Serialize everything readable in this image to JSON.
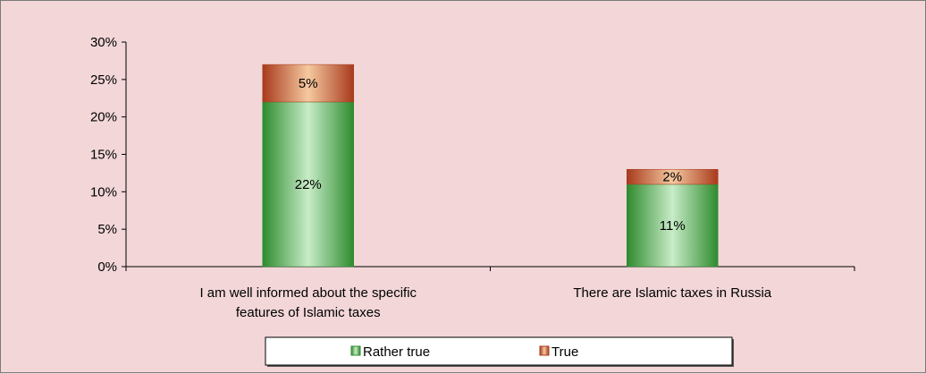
{
  "chart_data": {
    "type": "bar",
    "stacked": true,
    "categories": [
      [
        "I am well informed about the specific",
        "features of Islamic taxes"
      ],
      [
        "There are Islamic taxes in Russia"
      ]
    ],
    "series": [
      {
        "name": "Rather true",
        "values": [
          22,
          11
        ],
        "labels": [
          "22%",
          "11%"
        ],
        "color_edge": "#2e8b2e",
        "color_center": "#c8ecc8"
      },
      {
        "name": "True",
        "values": [
          5,
          2
        ],
        "labels": [
          "5%",
          "2%"
        ],
        "color_edge": "#a83a1c",
        "color_center": "#f5c9a0"
      }
    ],
    "y_ticks": [
      "0%",
      "5%",
      "10%",
      "15%",
      "20%",
      "25%",
      "30%"
    ],
    "ylim": [
      0,
      30
    ],
    "legend": "bottom",
    "grid": false
  }
}
